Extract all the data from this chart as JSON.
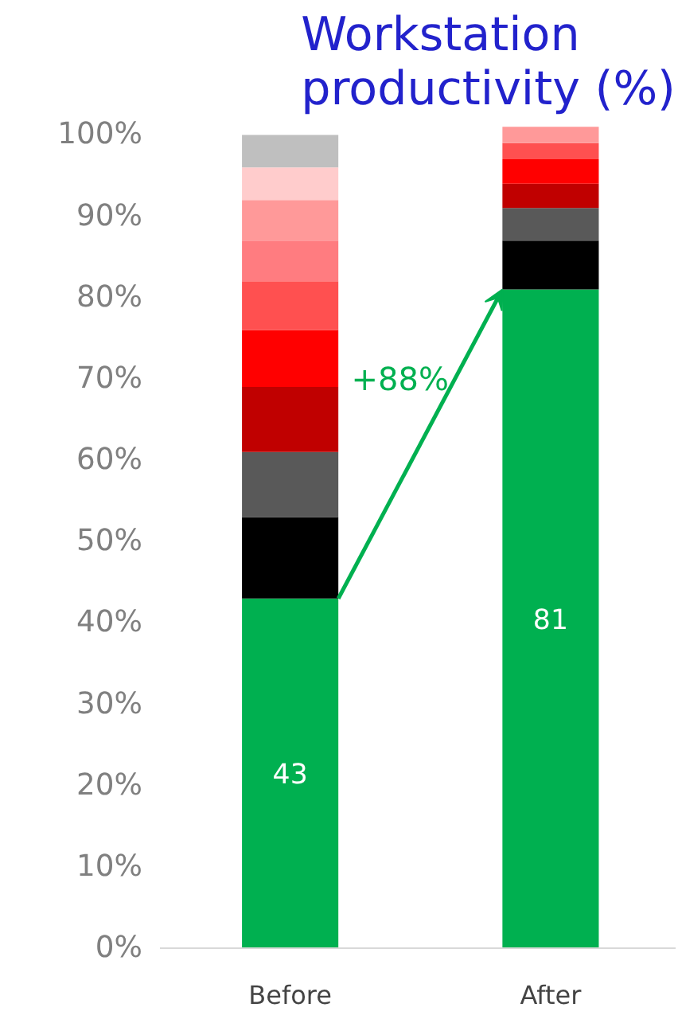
{
  "chart_data": {
    "type": "bar",
    "title": "Workstation\nproductivity (%)",
    "categories": [
      "Before",
      "After"
    ],
    "stacked": true,
    "series": [
      {
        "color": "#00b050",
        "values": [
          43,
          81
        ],
        "value_labels": [
          "43",
          "81"
        ]
      },
      {
        "color": "#000000",
        "values": [
          10,
          6
        ]
      },
      {
        "color": "#595959",
        "values": [
          8,
          4
        ]
      },
      {
        "color": "#c00000",
        "values": [
          8,
          3
        ]
      },
      {
        "color": "#ff0000",
        "values": [
          7,
          3
        ]
      },
      {
        "color": "#ff5050",
        "values": [
          6,
          2
        ]
      },
      {
        "color": "#ff7c80",
        "values": [
          5,
          null
        ]
      },
      {
        "color": "#ff9999",
        "values": [
          5,
          2
        ]
      },
      {
        "color": "#ffcccc",
        "values": [
          4,
          null
        ]
      },
      {
        "color": "#bfbfbf",
        "values": [
          4,
          null
        ]
      }
    ],
    "ylim": [
      0,
      102
    ],
    "yticks": [
      {
        "value": 0,
        "label": "0%"
      },
      {
        "value": 10,
        "label": "10%"
      },
      {
        "value": 20,
        "label": "20%"
      },
      {
        "value": 30,
        "label": "30%"
      },
      {
        "value": 40,
        "label": "40%"
      },
      {
        "value": 50,
        "label": "50%"
      },
      {
        "value": 60,
        "label": "60%"
      },
      {
        "value": 70,
        "label": "70%"
      },
      {
        "value": 80,
        "label": "80%"
      },
      {
        "value": 90,
        "label": "90%"
      },
      {
        "value": 100,
        "label": "100%"
      }
    ],
    "annotations": [
      "+88%"
    ],
    "grid": false
  }
}
